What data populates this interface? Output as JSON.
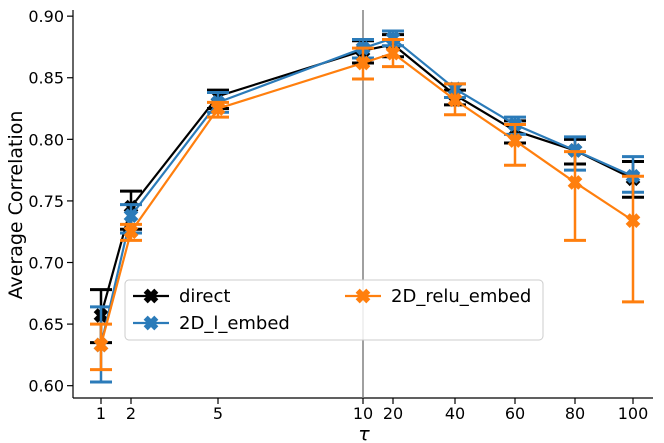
{
  "chart_data": {
    "type": "line",
    "xlabel": "τ",
    "ylabel": "Average Correlation",
    "x_tick_labels": [
      "1",
      "2",
      "5",
      "10",
      "20",
      "40",
      "60",
      "80",
      "100"
    ],
    "y_ticks": [
      0.6,
      0.65,
      0.7,
      0.75,
      0.8,
      0.85,
      0.9
    ],
    "y_tick_labels": [
      "0.60",
      "0.65",
      "0.70",
      "0.75",
      "0.80",
      "0.85",
      "0.90"
    ],
    "ylim": [
      0.59,
      0.905
    ],
    "vertical_line_at": "10",
    "legend": {
      "position": "lower-left",
      "columns": 2
    },
    "grid": false,
    "series": [
      {
        "name": "direct",
        "color": "#000000",
        "marker": "X",
        "values": [
          0.657,
          0.745,
          0.835,
          0.872,
          0.877,
          0.836,
          0.807,
          0.791,
          0.768
        ],
        "err_low": [
          0.635,
          0.727,
          0.825,
          0.862,
          0.867,
          0.828,
          0.797,
          0.78,
          0.753
        ],
        "err_high": [
          0.678,
          0.758,
          0.84,
          0.88,
          0.885,
          0.84,
          0.815,
          0.8,
          0.782
        ]
      },
      {
        "name": "2D_l_embed",
        "color": "#2b7bb9",
        "marker": "X",
        "values": [
          0.633,
          0.738,
          0.83,
          0.874,
          0.882,
          0.841,
          0.812,
          0.791,
          0.77
        ],
        "err_low": [
          0.603,
          0.724,
          0.822,
          0.866,
          0.876,
          0.834,
          0.804,
          0.775,
          0.757
        ],
        "err_high": [
          0.664,
          0.747,
          0.838,
          0.881,
          0.888,
          0.845,
          0.818,
          0.802,
          0.786
        ]
      },
      {
        "name": "2D_relu_embed",
        "color": "#ff7f0e",
        "marker": "X",
        "values": [
          0.633,
          0.725,
          0.825,
          0.862,
          0.87,
          0.832,
          0.799,
          0.765,
          0.734
        ],
        "err_low": [
          0.613,
          0.718,
          0.818,
          0.849,
          0.859,
          0.82,
          0.779,
          0.718,
          0.668
        ],
        "err_high": [
          0.65,
          0.731,
          0.83,
          0.874,
          0.881,
          0.845,
          0.812,
          0.79,
          0.77
        ]
      }
    ]
  }
}
